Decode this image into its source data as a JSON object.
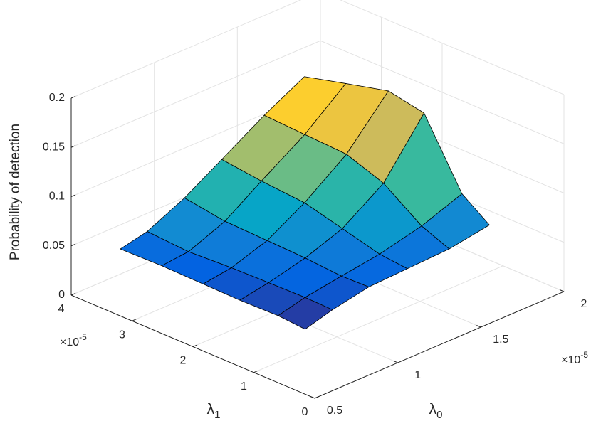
{
  "chart_data": {
    "type": "surface",
    "zlabel": "Probability of detection",
    "xlabel": {
      "symbol": "λ",
      "subscript": "0"
    },
    "ylabel": {
      "symbol": "λ",
      "subscript": "1"
    },
    "x_multiplier": {
      "base": "×10",
      "exponent": "-5"
    },
    "y_multiplier": {
      "base": "×10",
      "exponent": "-5"
    },
    "x": [
      [
        0.82,
        0.97,
        1.17,
        1.38,
        1.61,
        1.83
      ],
      [
        0.8,
        0.94,
        1.13,
        1.33,
        1.55,
        1.76
      ],
      [
        0.76,
        0.9,
        1.08,
        1.26,
        1.46,
        1.66
      ],
      [
        0.73,
        0.86,
        1.02,
        1.19,
        1.38,
        1.57
      ],
      [
        0.7,
        0.81,
        0.96,
        1.11,
        1.29,
        1.46
      ],
      [
        0.66,
        0.76,
        0.9,
        1.04,
        1.2,
        1.35
      ]
    ],
    "y": [
      [
        1.03,
        0.99,
        0.94,
        0.88,
        0.82,
        0.76
      ],
      [
        1.42,
        1.36,
        1.28,
        1.2,
        1.11,
        1.02
      ],
      [
        1.94,
        1.85,
        1.74,
        1.62,
        1.49,
        1.37
      ],
      [
        2.46,
        2.35,
        2.2,
        2.05,
        1.88,
        1.71
      ],
      [
        3.06,
        2.92,
        2.73,
        2.54,
        2.32,
        2.11
      ],
      [
        3.63,
        3.46,
        3.23,
        3.0,
        2.74,
        2.49
      ]
    ],
    "z": [
      [
        0.02,
        0.03,
        0.04,
        0.045,
        0.05,
        0.06
      ],
      [
        0.025,
        0.035,
        0.045,
        0.055,
        0.07,
        0.09
      ],
      [
        0.03,
        0.04,
        0.055,
        0.075,
        0.11,
        0.17
      ],
      [
        0.035,
        0.045,
        0.065,
        0.095,
        0.135,
        0.19
      ],
      [
        0.04,
        0.05,
        0.075,
        0.11,
        0.15,
        0.195
      ],
      [
        0.045,
        0.06,
        0.09,
        0.125,
        0.165,
        0.2
      ]
    ],
    "xlim": [
      0.5,
      2
    ],
    "ylim": [
      0,
      4
    ],
    "zlim": [
      0,
      0.2
    ],
    "xticks": [
      0.5,
      1,
      1.5,
      2
    ],
    "yticks": [
      0,
      1,
      2,
      3,
      4
    ],
    "zticks": [
      0,
      0.05,
      0.1,
      0.15,
      0.2
    ],
    "grid": true,
    "edge_color": "#000000",
    "colormap": [
      "#352a87",
      "#0363e1",
      "#1485d4",
      "#06a7c6",
      "#38b99e",
      "#92bf73",
      "#d9ba56",
      "#fcce2e",
      "#f9fb0e"
    ]
  }
}
